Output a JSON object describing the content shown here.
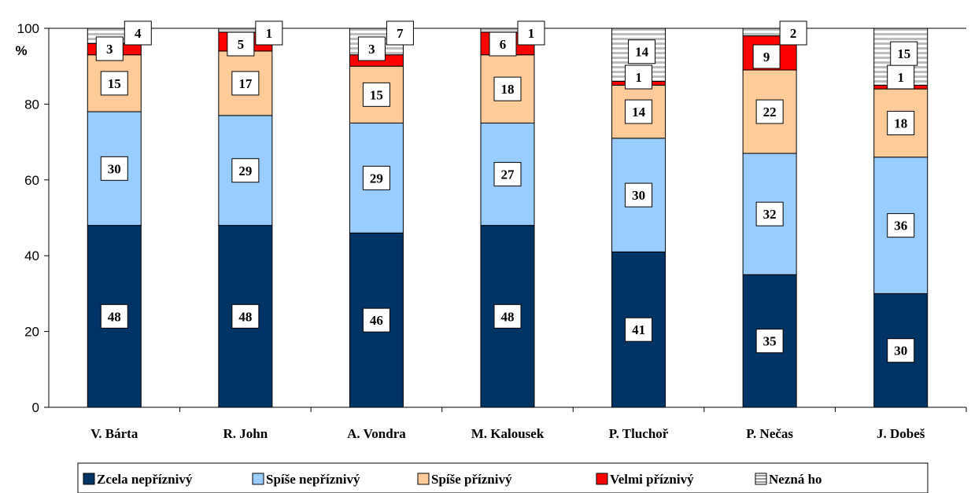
{
  "chart_data": {
    "type": "bar",
    "stacked": true,
    "ylabel": "%",
    "ylim": [
      0,
      100
    ],
    "yticks": [
      0,
      20,
      40,
      60,
      80,
      100
    ],
    "grid": "top line only",
    "legend_position": "bottom",
    "categories": [
      "V. Bárta",
      "R. John",
      "A. Vondra",
      "M. Kalousek",
      "P. Tluchoř",
      "P. Nečas",
      "J. Dobeš"
    ],
    "series": [
      {
        "name": "Zcela nepříznivý",
        "color": "#003366",
        "values": [
          48,
          48,
          46,
          48,
          41,
          35,
          30
        ]
      },
      {
        "name": "Spíše nepříznivý",
        "color": "#99ccff",
        "values": [
          30,
          29,
          29,
          27,
          30,
          32,
          36
        ]
      },
      {
        "name": "Spíše příznivý",
        "color": "#ffcc99",
        "values": [
          15,
          17,
          15,
          18,
          14,
          22,
          18
        ]
      },
      {
        "name": "Velmi příznivý",
        "color": "#ff0000",
        "values": [
          3,
          5,
          3,
          6,
          1,
          9,
          1
        ]
      },
      {
        "name": "Nezná ho",
        "color": "#d8d8d8",
        "pattern": "horizontal-stripes",
        "values": [
          4,
          1,
          7,
          1,
          14,
          2,
          15
        ]
      }
    ]
  }
}
